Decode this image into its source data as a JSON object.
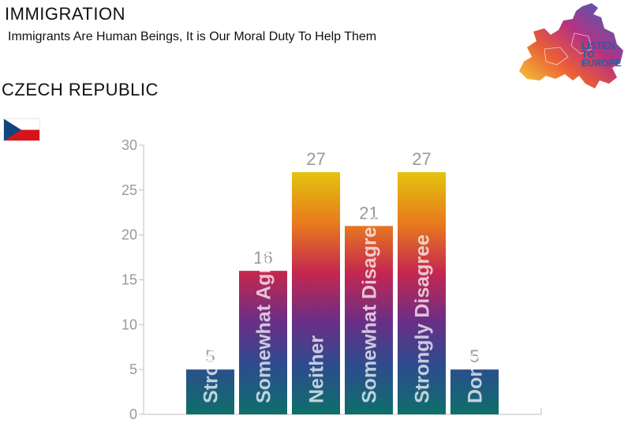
{
  "header": {
    "title": "IMMIGRATION",
    "subtitle": "Immigrants Are Human Beings, It is Our Moral Duty To Help Them",
    "country": "CZECH REPUBLIC"
  },
  "logo": {
    "line1": "LISTEN",
    "line2": "TO",
    "line3": "EUROPE",
    "icon": "europe-map-logo-icon"
  },
  "flag": {
    "icon": "czech-flag-icon",
    "colors": [
      "#ffffff",
      "#d7141a",
      "#11457e"
    ]
  },
  "colors": {
    "gradient_top": "#e3c60c",
    "gradient_mid_top": "#e8791e",
    "gradient_mid": "#c4274f",
    "gradient_mid_low": "#6a2e86",
    "gradient_low": "#2d4c8e",
    "gradient_bottom": "#0d6f6a",
    "axis": "#bfbfbf",
    "label": "#999999",
    "bar_text": "rgba(255,255,255,0.72)"
  },
  "chart_data": {
    "type": "bar",
    "categories": [
      "Strongly Agree",
      "Somewhat Agree",
      "Neither",
      "Somewhat Disagree",
      "Strongly Disagree",
      "Don't Know"
    ],
    "values": [
      5,
      16,
      27,
      21,
      27,
      5
    ],
    "ylim": [
      0,
      30
    ],
    "yticks": [
      0,
      5,
      10,
      15,
      20,
      25,
      30
    ],
    "grid": false
  }
}
